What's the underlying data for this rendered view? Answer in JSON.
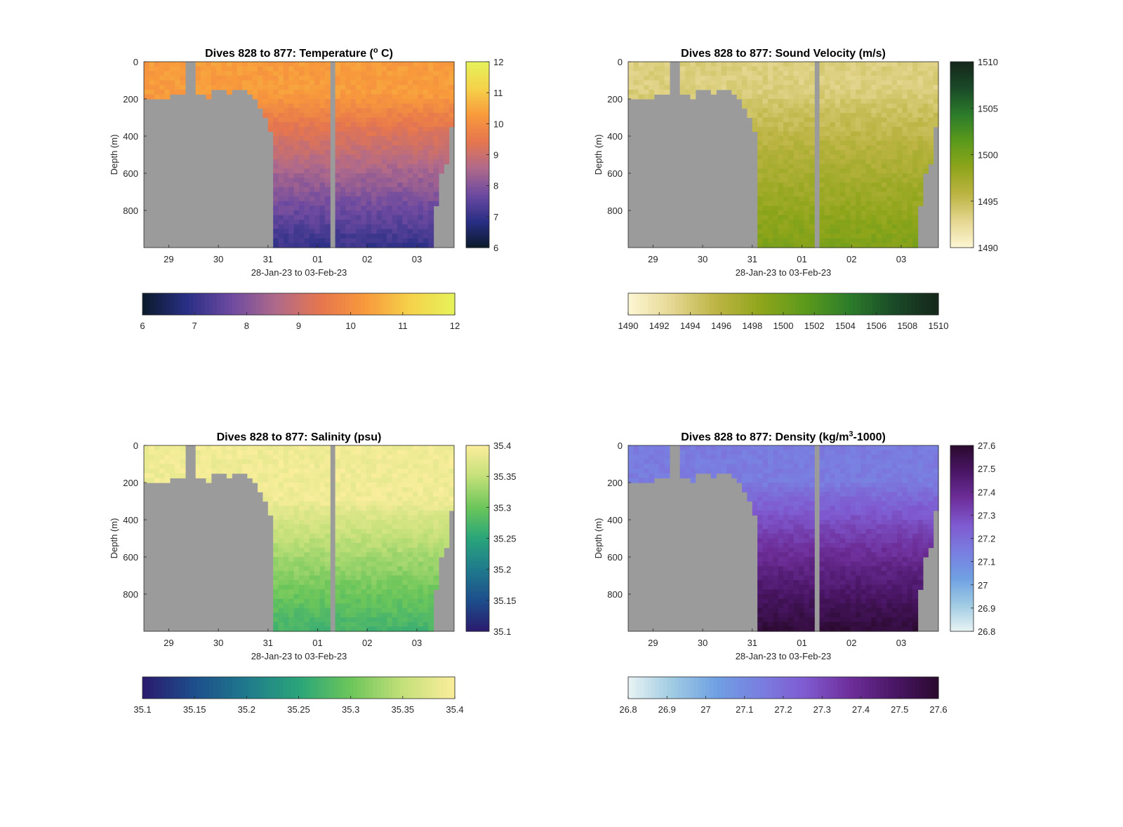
{
  "figure": {
    "xlabel": "28-Jan-23 to 03-Feb-23",
    "ylabel": "Depth (m)",
    "x_ticks": [
      "29",
      "30",
      "31",
      "01",
      "02",
      "03"
    ],
    "y_ticks": [
      "0",
      "200",
      "400",
      "600",
      "800"
    ]
  },
  "chart_data": [
    {
      "type": "heatmap",
      "id": "temperature",
      "title": "Dives 828 to 877: Temperature (",
      "title_sup": "o",
      "title_end": " C)",
      "xlabel": "28-Jan-23 to 03-Feb-23",
      "ylabel": "Depth (m)",
      "xlim": [
        "2023-01-28 12:00",
        "2023-02-03 18:00"
      ],
      "ylim": [
        0,
        1000
      ],
      "y_reversed": true,
      "clim": [
        6,
        12
      ],
      "colorbar_ticks": [
        "6",
        "7",
        "8",
        "9",
        "10",
        "11",
        "12"
      ],
      "hcolorbar_ticks": [
        "6",
        "7",
        "8",
        "9",
        "10",
        "11",
        "12"
      ],
      "colormap": [
        "#0b1a2a",
        "#2a2f86",
        "#6d4aa0",
        "#b06a8a",
        "#e6764e",
        "#f89a3c",
        "#f5d24a",
        "#e6f25a"
      ],
      "field": {
        "surface": 10.3,
        "at_depth": 7.0,
        "surface_layer_depth": 180
      }
    },
    {
      "type": "heatmap",
      "id": "sound_velocity",
      "title": "Dives 828 to 877: Sound Velocity (m/s)",
      "xlabel": "28-Jan-23 to 03-Feb-23",
      "ylabel": "Depth (m)",
      "xlim": [
        "2023-01-28 12:00",
        "2023-02-03 18:00"
      ],
      "ylim": [
        0,
        1000
      ],
      "y_reversed": true,
      "clim": [
        1490,
        1510
      ],
      "colorbar_ticks": [
        "1490",
        "1495",
        "1500",
        "1505",
        "1510"
      ],
      "hcolorbar_ticks": [
        "1490",
        "1492",
        "1494",
        "1496",
        "1498",
        "1500",
        "1502",
        "1504",
        "1506",
        "1508",
        "1510"
      ],
      "colormap": [
        "#fdf6d4",
        "#e5d791",
        "#bcb443",
        "#8fa51a",
        "#5b9a1c",
        "#2c7c2a",
        "#1a4a28",
        "#15261a"
      ],
      "field": {
        "surface": 1493.5,
        "at_depth": 1499.5,
        "surface_layer_depth": 150
      }
    },
    {
      "type": "heatmap",
      "id": "salinity",
      "title": "Dives 828 to 877: Salinity (psu)",
      "xlabel": "28-Jan-23 to 03-Feb-23",
      "ylabel": "Depth (m)",
      "xlim": [
        "2023-01-28 12:00",
        "2023-02-03 18:00"
      ],
      "ylim": [
        0,
        1000
      ],
      "y_reversed": true,
      "clim": [
        35.1,
        35.4
      ],
      "colorbar_ticks": [
        "35.1",
        "35.15",
        "35.2",
        "35.25",
        "35.3",
        "35.35",
        "35.4"
      ],
      "hcolorbar_ticks": [
        "35.1",
        "35.15",
        "35.2",
        "35.25",
        "35.3",
        "35.35",
        "35.4"
      ],
      "colormap": [
        "#2a1a6e",
        "#1d4e8c",
        "#1f7a8c",
        "#2aa57a",
        "#6cc65a",
        "#c4e07a",
        "#fbee9c"
      ],
      "field": {
        "surface": 35.39,
        "at_depth": 35.27,
        "surface_layer_depth": 300
      }
    },
    {
      "type": "heatmap",
      "id": "density",
      "title": "Dives 828 to 877: Density (kg/m",
      "title_sup": "3",
      "title_end": "-1000)",
      "xlabel": "28-Jan-23 to 03-Feb-23",
      "ylabel": "Depth (m)",
      "xlim": [
        "2023-01-28 12:00",
        "2023-02-03 18:00"
      ],
      "ylim": [
        0,
        1000
      ],
      "y_reversed": true,
      "clim": [
        26.8,
        27.6
      ],
      "colorbar_ticks": [
        "26.8",
        "26.9",
        "27",
        "27.1",
        "27.2",
        "27.3",
        "27.4",
        "27.5",
        "27.6"
      ],
      "hcolorbar_ticks": [
        "26.8",
        "26.9",
        "27",
        "27.1",
        "27.2",
        "27.3",
        "27.4",
        "27.5",
        "27.6"
      ],
      "colormap": [
        "#e8f3f3",
        "#9fcbe3",
        "#6fa0e3",
        "#7a7ee0",
        "#7f5ad0",
        "#6e2f9a",
        "#4a1666",
        "#2a0a2e"
      ],
      "field": {
        "surface": 27.15,
        "at_depth": 27.58,
        "surface_layer_depth": 200
      }
    }
  ]
}
